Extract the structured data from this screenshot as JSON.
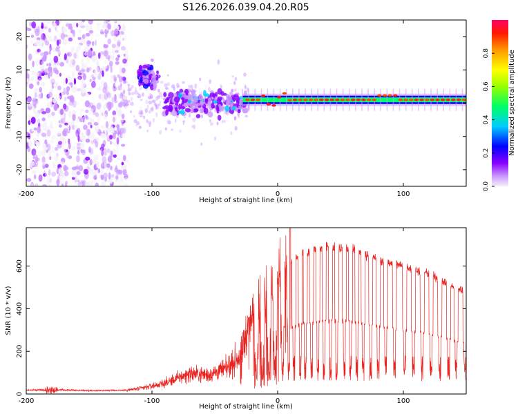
{
  "title": "S126.2026.039.04.20.R05",
  "chart_data": [
    {
      "type": "heatmap",
      "xlabel": "Height of straight line (km)",
      "ylabel": "Frequency (Hz)",
      "xlim": [
        -200,
        150
      ],
      "ylim": [
        -25,
        25
      ],
      "xticks": [
        -200,
        -100,
        0,
        100
      ],
      "yticks": [
        -20,
        -10,
        0,
        10,
        20
      ],
      "colorbar": {
        "label": "Normalized spectral amplitude",
        "range": [
          0,
          1
        ],
        "ticks": [
          "0.0",
          "0.2",
          "0.4",
          "0.6",
          "0.8"
        ],
        "colors": [
          "#f2f2f2",
          "#cc99ff",
          "#8800ff",
          "#0000ff",
          "#00ccff",
          "#00ff66",
          "#ffff00",
          "#ff9900",
          "#ff0000",
          "#ff0066"
        ]
      },
      "features": [
        {
          "name": "noise scatter",
          "x": [
            -200,
            -120
          ],
          "f_range": [
            -25,
            25
          ],
          "amplitude": 0.1
        },
        {
          "name": "tone cluster",
          "x": [
            -110,
            -95
          ],
          "f_center": 8,
          "amplitude": 0.25
        },
        {
          "name": "tone cluster",
          "x": [
            -90,
            -25
          ],
          "f_center": 0,
          "amplitude": 0.3
        },
        {
          "name": "carrier line",
          "x": [
            -28,
            150
          ],
          "f_center": 1,
          "amplitude": 0.85
        }
      ]
    },
    {
      "type": "line",
      "xlabel": "Height of straight line (km)",
      "ylabel": "SNR (10 * v/v)",
      "xlim": [
        -200,
        150
      ],
      "ylim": [
        0,
        780
      ],
      "xticks": [
        -200,
        -100,
        0,
        100
      ],
      "yticks": [
        0,
        200,
        400,
        600
      ],
      "color": "#e8231f",
      "envelope": {
        "x": [
          -200,
          -180,
          -150,
          -120,
          -110,
          -90,
          -70,
          -55,
          -40,
          -30,
          -25,
          -20,
          -10,
          -5,
          0,
          10,
          20,
          40,
          60,
          80,
          100,
          120,
          140,
          150
        ],
        "y": [
          18,
          20,
          16,
          18,
          25,
          50,
          95,
          90,
          120,
          180,
          280,
          360,
          460,
          500,
          550,
          610,
          660,
          690,
          680,
          630,
          600,
          565,
          500,
          480
        ]
      },
      "peak": {
        "x": 10,
        "y": 780
      },
      "dropouts_x": [
        -17,
        -12,
        -7,
        -2,
        4,
        9,
        13,
        18,
        22,
        27,
        32,
        37,
        42,
        47,
        53,
        58,
        63,
        68,
        74,
        80,
        86,
        93,
        101,
        108,
        115,
        122,
        129,
        136,
        142,
        149
      ]
    }
  ]
}
